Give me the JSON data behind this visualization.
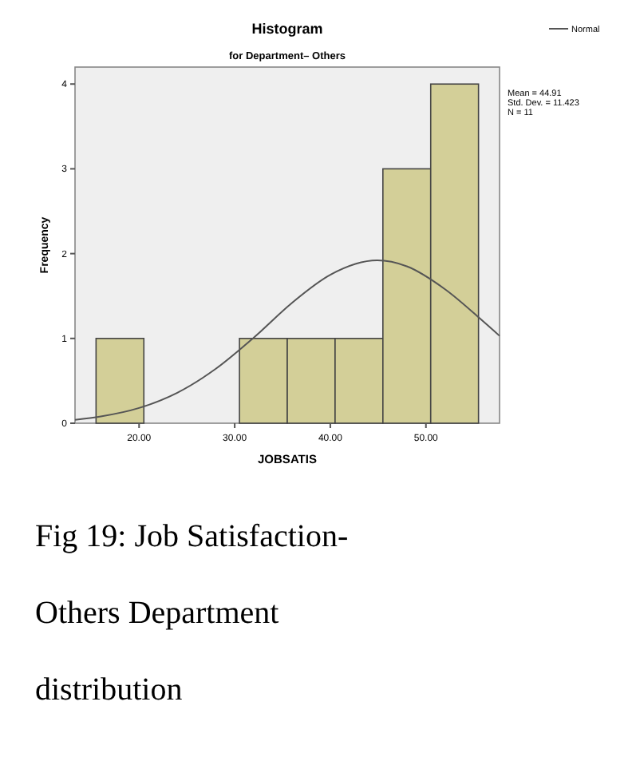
{
  "chart_data": {
    "type": "histogram",
    "title": "Histogram",
    "subtitle": "for Department– Others",
    "xlabel": "JOBSATIS",
    "ylabel": "Frequency",
    "bins": [
      15.5,
      20.5,
      25.5,
      30.5,
      35.5,
      40.5,
      45.5,
      50.5,
      55.5
    ],
    "values": [
      1,
      0,
      0,
      1,
      1,
      1,
      3,
      4
    ],
    "color": "#d3cf98",
    "series": [
      {
        "type": "line",
        "name": "Normal",
        "color": "#555555",
        "x": [
          13.3,
          16,
          20,
          24,
          28,
          32,
          36,
          40,
          44.91,
          48,
          52,
          56,
          57.7
        ],
        "values": [
          0.04,
          0.08,
          0.18,
          0.36,
          0.64,
          1.01,
          1.42,
          1.75,
          1.92,
          1.85,
          1.58,
          1.2,
          1.03
        ]
      }
    ],
    "xlim": [
      13.3,
      57.7
    ],
    "xticks": [
      {
        "value": 20,
        "label": "20.00"
      },
      {
        "value": 30,
        "label": "30.00"
      },
      {
        "value": 40,
        "label": "40.00"
      },
      {
        "value": 50,
        "label": "50.00"
      }
    ],
    "ylim": [
      0,
      4.2
    ],
    "yticks": [
      0,
      1,
      2,
      3,
      4
    ],
    "legend": "top right",
    "annotations": [
      "Mean = 44.91\nStd. Dev. = 11.423\nN = 11",
      "Fig 19: Job Satisfaction- Others  Department distribution"
    ]
  }
}
